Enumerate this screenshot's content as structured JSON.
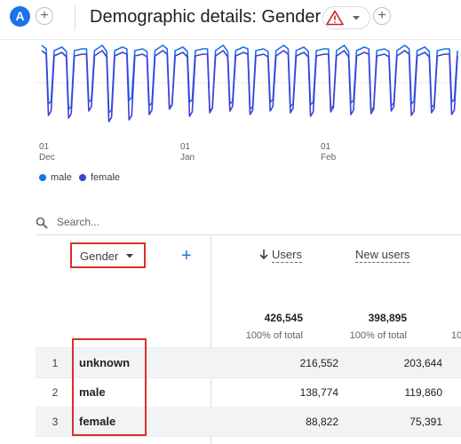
{
  "header": {
    "avatar_letter": "A",
    "add_label": "+",
    "title": "Demographic details: Gender",
    "warning_icon": "warning-icon",
    "dropdown_icon": "caret-down-icon",
    "add_report_label": "+"
  },
  "chart": {
    "x_ticks": [
      {
        "day": "01",
        "month": "Dec"
      },
      {
        "day": "01",
        "month": "Jan"
      },
      {
        "day": "01",
        "month": "Feb"
      }
    ],
    "legend": [
      {
        "name": "male",
        "color": "#1a73e8"
      },
      {
        "name": "female",
        "color": "#3f3fd6"
      }
    ]
  },
  "chart_data": {
    "type": "line",
    "xlabel": "",
    "ylabel": "",
    "x_ticks": [
      "01 Dec",
      "01 Jan",
      "01 Feb"
    ],
    "series": [
      {
        "name": "male",
        "color": "#1a73e8",
        "pattern": "weekly dips"
      },
      {
        "name": "female",
        "color": "#3f3fd6",
        "pattern": "weekly dips"
      }
    ],
    "grid": true
  },
  "search": {
    "placeholder": "Search..."
  },
  "table": {
    "dimension_label": "Gender",
    "add_dimension": "+",
    "columns": [
      {
        "label": "Users",
        "sorted": true,
        "total": "426,545",
        "pct": "100% of total"
      },
      {
        "label": "New users",
        "sorted": false,
        "total": "398,895",
        "pct": "100% of total"
      }
    ],
    "truncated_pct": "10",
    "rows": [
      {
        "index": "1",
        "dimension": "unknown",
        "users": "216,552",
        "new_users": "203,644"
      },
      {
        "index": "2",
        "dimension": "male",
        "users": "138,774",
        "new_users": "119,860"
      },
      {
        "index": "3",
        "dimension": "female",
        "users": "88,822",
        "new_users": "75,391"
      }
    ]
  }
}
